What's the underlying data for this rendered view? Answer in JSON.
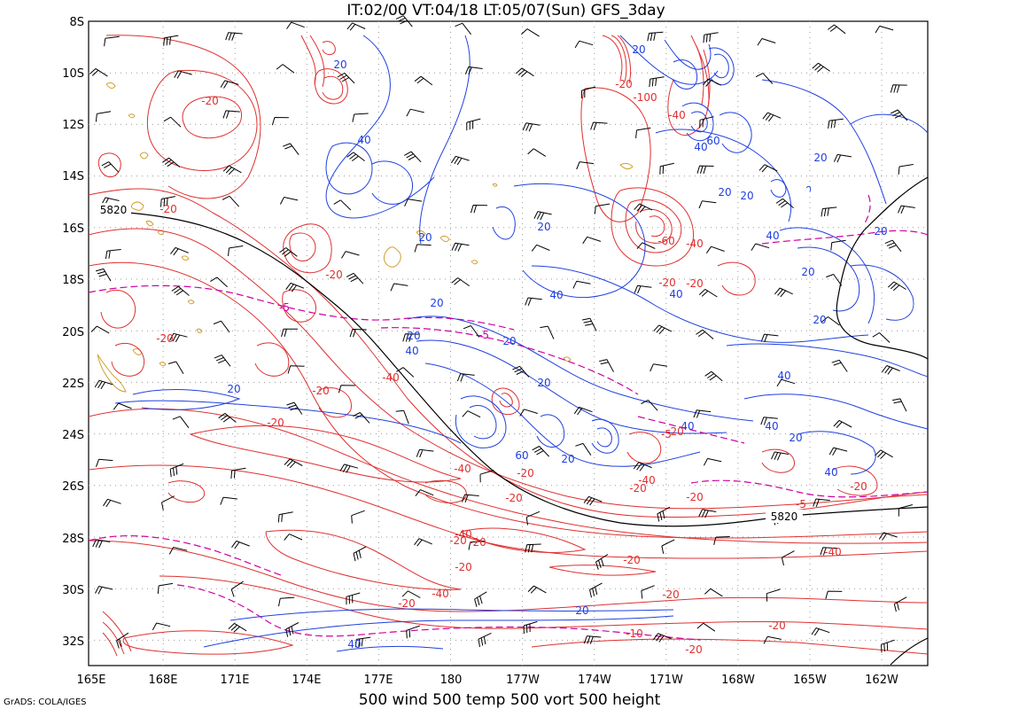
{
  "header": {
    "title": "IT:02/00 VT:04/18 LT:05/07(Sun) GFS_3day"
  },
  "footer": {
    "caption": "500 wind 500 temp 500 vort 500 height",
    "credit": "GrADS: COLA/IGES"
  },
  "map": {
    "lat_labels": [
      "8S",
      "10S",
      "12S",
      "14S",
      "16S",
      "18S",
      "20S",
      "22S",
      "24S",
      "26S",
      "28S",
      "30S",
      "32S"
    ],
    "lon_labels": [
      "165E",
      "168E",
      "171E",
      "174E",
      "177E",
      "180",
      "177W",
      "174W",
      "171W",
      "168W",
      "165W",
      "162W"
    ],
    "colors": {
      "temperature": "#e03030",
      "vorticity_positive": "#2040e0",
      "vorticity_negative": "#e03030",
      "height": "#000000",
      "temp_dashed": "#d000a0",
      "coast": "#d0a030",
      "wind": "#000000"
    },
    "height_labels": [
      {
        "text": "5820"
      },
      {
        "text": "5820"
      }
    ],
    "contour_labels": [
      {
        "text": "-20",
        "color": "red"
      },
      {
        "text": "-20",
        "color": "red"
      },
      {
        "text": "-20",
        "color": "red"
      },
      {
        "text": "-20",
        "color": "red"
      },
      {
        "text": "-20",
        "color": "red"
      },
      {
        "text": "-20",
        "color": "red"
      },
      {
        "text": "-40",
        "color": "red"
      },
      {
        "text": "-20",
        "color": "red"
      },
      {
        "text": "-40",
        "color": "red"
      },
      {
        "text": "-20",
        "color": "red"
      },
      {
        "text": "-20",
        "color": "red"
      },
      {
        "text": "-40",
        "color": "red"
      },
      {
        "text": "-20",
        "color": "red"
      },
      {
        "text": "-20",
        "color": "red"
      },
      {
        "text": "-40",
        "color": "red"
      },
      {
        "text": "-20",
        "color": "red"
      },
      {
        "text": "-20",
        "color": "red"
      },
      {
        "text": "-20",
        "color": "red"
      },
      {
        "text": "-20",
        "color": "red"
      },
      {
        "text": "-40",
        "color": "red"
      },
      {
        "text": "-20",
        "color": "red"
      },
      {
        "text": "-20",
        "color": "red"
      },
      {
        "text": "-20",
        "color": "red"
      },
      {
        "text": "-60",
        "color": "red"
      },
      {
        "text": "-40",
        "color": "red"
      },
      {
        "text": "-20",
        "color": "red"
      },
      {
        "text": "-20",
        "color": "red"
      },
      {
        "text": "-20",
        "color": "red"
      },
      {
        "text": "-40",
        "color": "red"
      },
      {
        "text": "-100",
        "color": "red"
      },
      {
        "text": "-40",
        "color": "red"
      },
      {
        "text": "-10",
        "color": "red"
      },
      {
        "text": "-20",
        "color": "red"
      },
      {
        "text": "-20",
        "color": "red"
      },
      {
        "text": "20",
        "color": "blue"
      },
      {
        "text": "40",
        "color": "blue"
      },
      {
        "text": "20",
        "color": "blue"
      },
      {
        "text": "20",
        "color": "blue"
      },
      {
        "text": "20",
        "color": "blue"
      },
      {
        "text": "40",
        "color": "blue"
      },
      {
        "text": "20",
        "color": "blue"
      },
      {
        "text": "20",
        "color": "blue"
      },
      {
        "text": "40",
        "color": "blue"
      },
      {
        "text": "20",
        "color": "blue"
      },
      {
        "text": "60",
        "color": "blue"
      },
      {
        "text": "20",
        "color": "blue"
      },
      {
        "text": "20",
        "color": "blue"
      },
      {
        "text": "40",
        "color": "blue"
      },
      {
        "text": "20",
        "color": "blue"
      },
      {
        "text": "40",
        "color": "blue"
      },
      {
        "text": "60",
        "color": "blue"
      },
      {
        "text": "20",
        "color": "blue"
      },
      {
        "text": "20",
        "color": "blue"
      },
      {
        "text": "40",
        "color": "blue"
      },
      {
        "text": "20",
        "color": "blue"
      },
      {
        "text": "20",
        "color": "blue"
      },
      {
        "text": "40",
        "color": "blue"
      },
      {
        "text": "20",
        "color": "blue"
      },
      {
        "text": "40",
        "color": "blue"
      },
      {
        "text": "40",
        "color": "blue"
      },
      {
        "text": "20",
        "color": "blue"
      },
      {
        "text": "40",
        "color": "blue"
      },
      {
        "text": "20",
        "color": "blue"
      },
      {
        "text": "20",
        "color": "blue"
      },
      {
        "text": "40",
        "color": "blue"
      },
      {
        "text": "-5",
        "color": "magenta"
      },
      {
        "text": "-5",
        "color": "magenta"
      },
      {
        "text": "-5",
        "color": "red"
      },
      {
        "text": "-5",
        "color": "red"
      }
    ]
  }
}
